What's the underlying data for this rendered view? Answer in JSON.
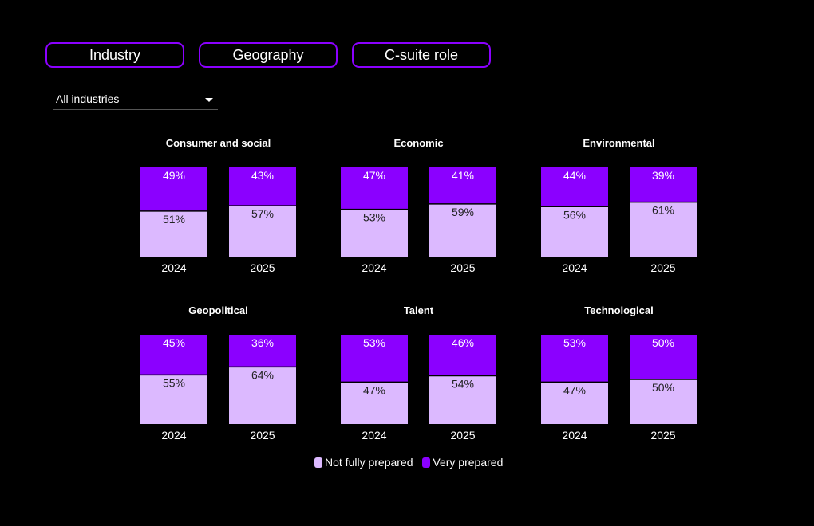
{
  "filters": {
    "tabs": [
      {
        "label": "Industry"
      },
      {
        "label": "Geography"
      },
      {
        "label": "C-suite role"
      }
    ],
    "dropdown": {
      "selected": "All industries"
    }
  },
  "colors": {
    "very_prepared": "#8b00ff",
    "not_fully_prepared": "#dcb9ff",
    "background": "#000000",
    "tab_border": "#8b00ff"
  },
  "chart_data": {
    "type": "bar",
    "stacked": true,
    "normalized_to": 100,
    "unit": "%",
    "series_names": [
      "Not fully prepared",
      "Very prepared"
    ],
    "panels": [
      {
        "title": "Consumer and social",
        "categories": [
          "2024",
          "2025"
        ],
        "series": [
          {
            "name": "Not fully prepared",
            "values": [
              51,
              57
            ]
          },
          {
            "name": "Very prepared",
            "values": [
              49,
              43
            ]
          }
        ]
      },
      {
        "title": "Economic",
        "categories": [
          "2024",
          "2025"
        ],
        "series": [
          {
            "name": "Not fully prepared",
            "values": [
              53,
              59
            ]
          },
          {
            "name": "Very prepared",
            "values": [
              47,
              41
            ]
          }
        ]
      },
      {
        "title": "Environmental",
        "categories": [
          "2024",
          "2025"
        ],
        "series": [
          {
            "name": "Not fully prepared",
            "values": [
              56,
              61
            ]
          },
          {
            "name": "Very prepared",
            "values": [
              44,
              39
            ]
          }
        ]
      },
      {
        "title": "Geopolitical",
        "categories": [
          "2024",
          "2025"
        ],
        "series": [
          {
            "name": "Not fully prepared",
            "values": [
              55,
              64
            ]
          },
          {
            "name": "Very prepared",
            "values": [
              45,
              36
            ]
          }
        ]
      },
      {
        "title": "Talent",
        "categories": [
          "2024",
          "2025"
        ],
        "series": [
          {
            "name": "Not fully prepared",
            "values": [
              47,
              54
            ]
          },
          {
            "name": "Very prepared",
            "values": [
              53,
              46
            ]
          }
        ]
      },
      {
        "title": "Technological",
        "categories": [
          "2024",
          "2025"
        ],
        "series": [
          {
            "name": "Not fully prepared",
            "values": [
              47,
              50
            ]
          },
          {
            "name": "Very prepared",
            "values": [
              53,
              50
            ]
          }
        ]
      }
    ],
    "legend": {
      "position": "bottom-center",
      "items": [
        {
          "label": "Not fully prepared",
          "color": "#dcb9ff"
        },
        {
          "label": "Very prepared",
          "color": "#8b00ff"
        }
      ]
    }
  }
}
